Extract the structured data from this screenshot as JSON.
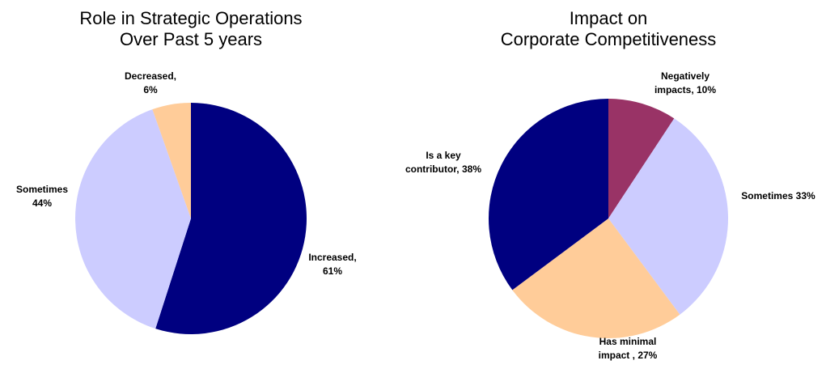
{
  "chart_data": [
    {
      "type": "pie",
      "title": [
        "Role in Strategic Operations",
        "Over Past 5 years"
      ],
      "categories": [
        "Increased,",
        "Sometimes",
        "Decreased,"
      ],
      "values": [
        61,
        44,
        6
      ],
      "value_labels": [
        "61%",
        "44%",
        "6%"
      ],
      "colors": [
        "#000080",
        "#ccccff",
        "#ffcc99"
      ]
    },
    {
      "type": "pie",
      "title": [
        "Impact on",
        "Corporate Competitiveness"
      ],
      "categories": [
        "Negatively impacts,",
        "Sometimes",
        "Has minimal impact ,",
        "Is a key contributor,"
      ],
      "values": [
        10,
        33,
        27,
        38
      ],
      "value_labels": [
        "10%",
        "33%",
        "27%",
        "38%"
      ],
      "colors": [
        "#993366",
        "#ccccff",
        "#ffcc99",
        "#000080"
      ]
    }
  ]
}
